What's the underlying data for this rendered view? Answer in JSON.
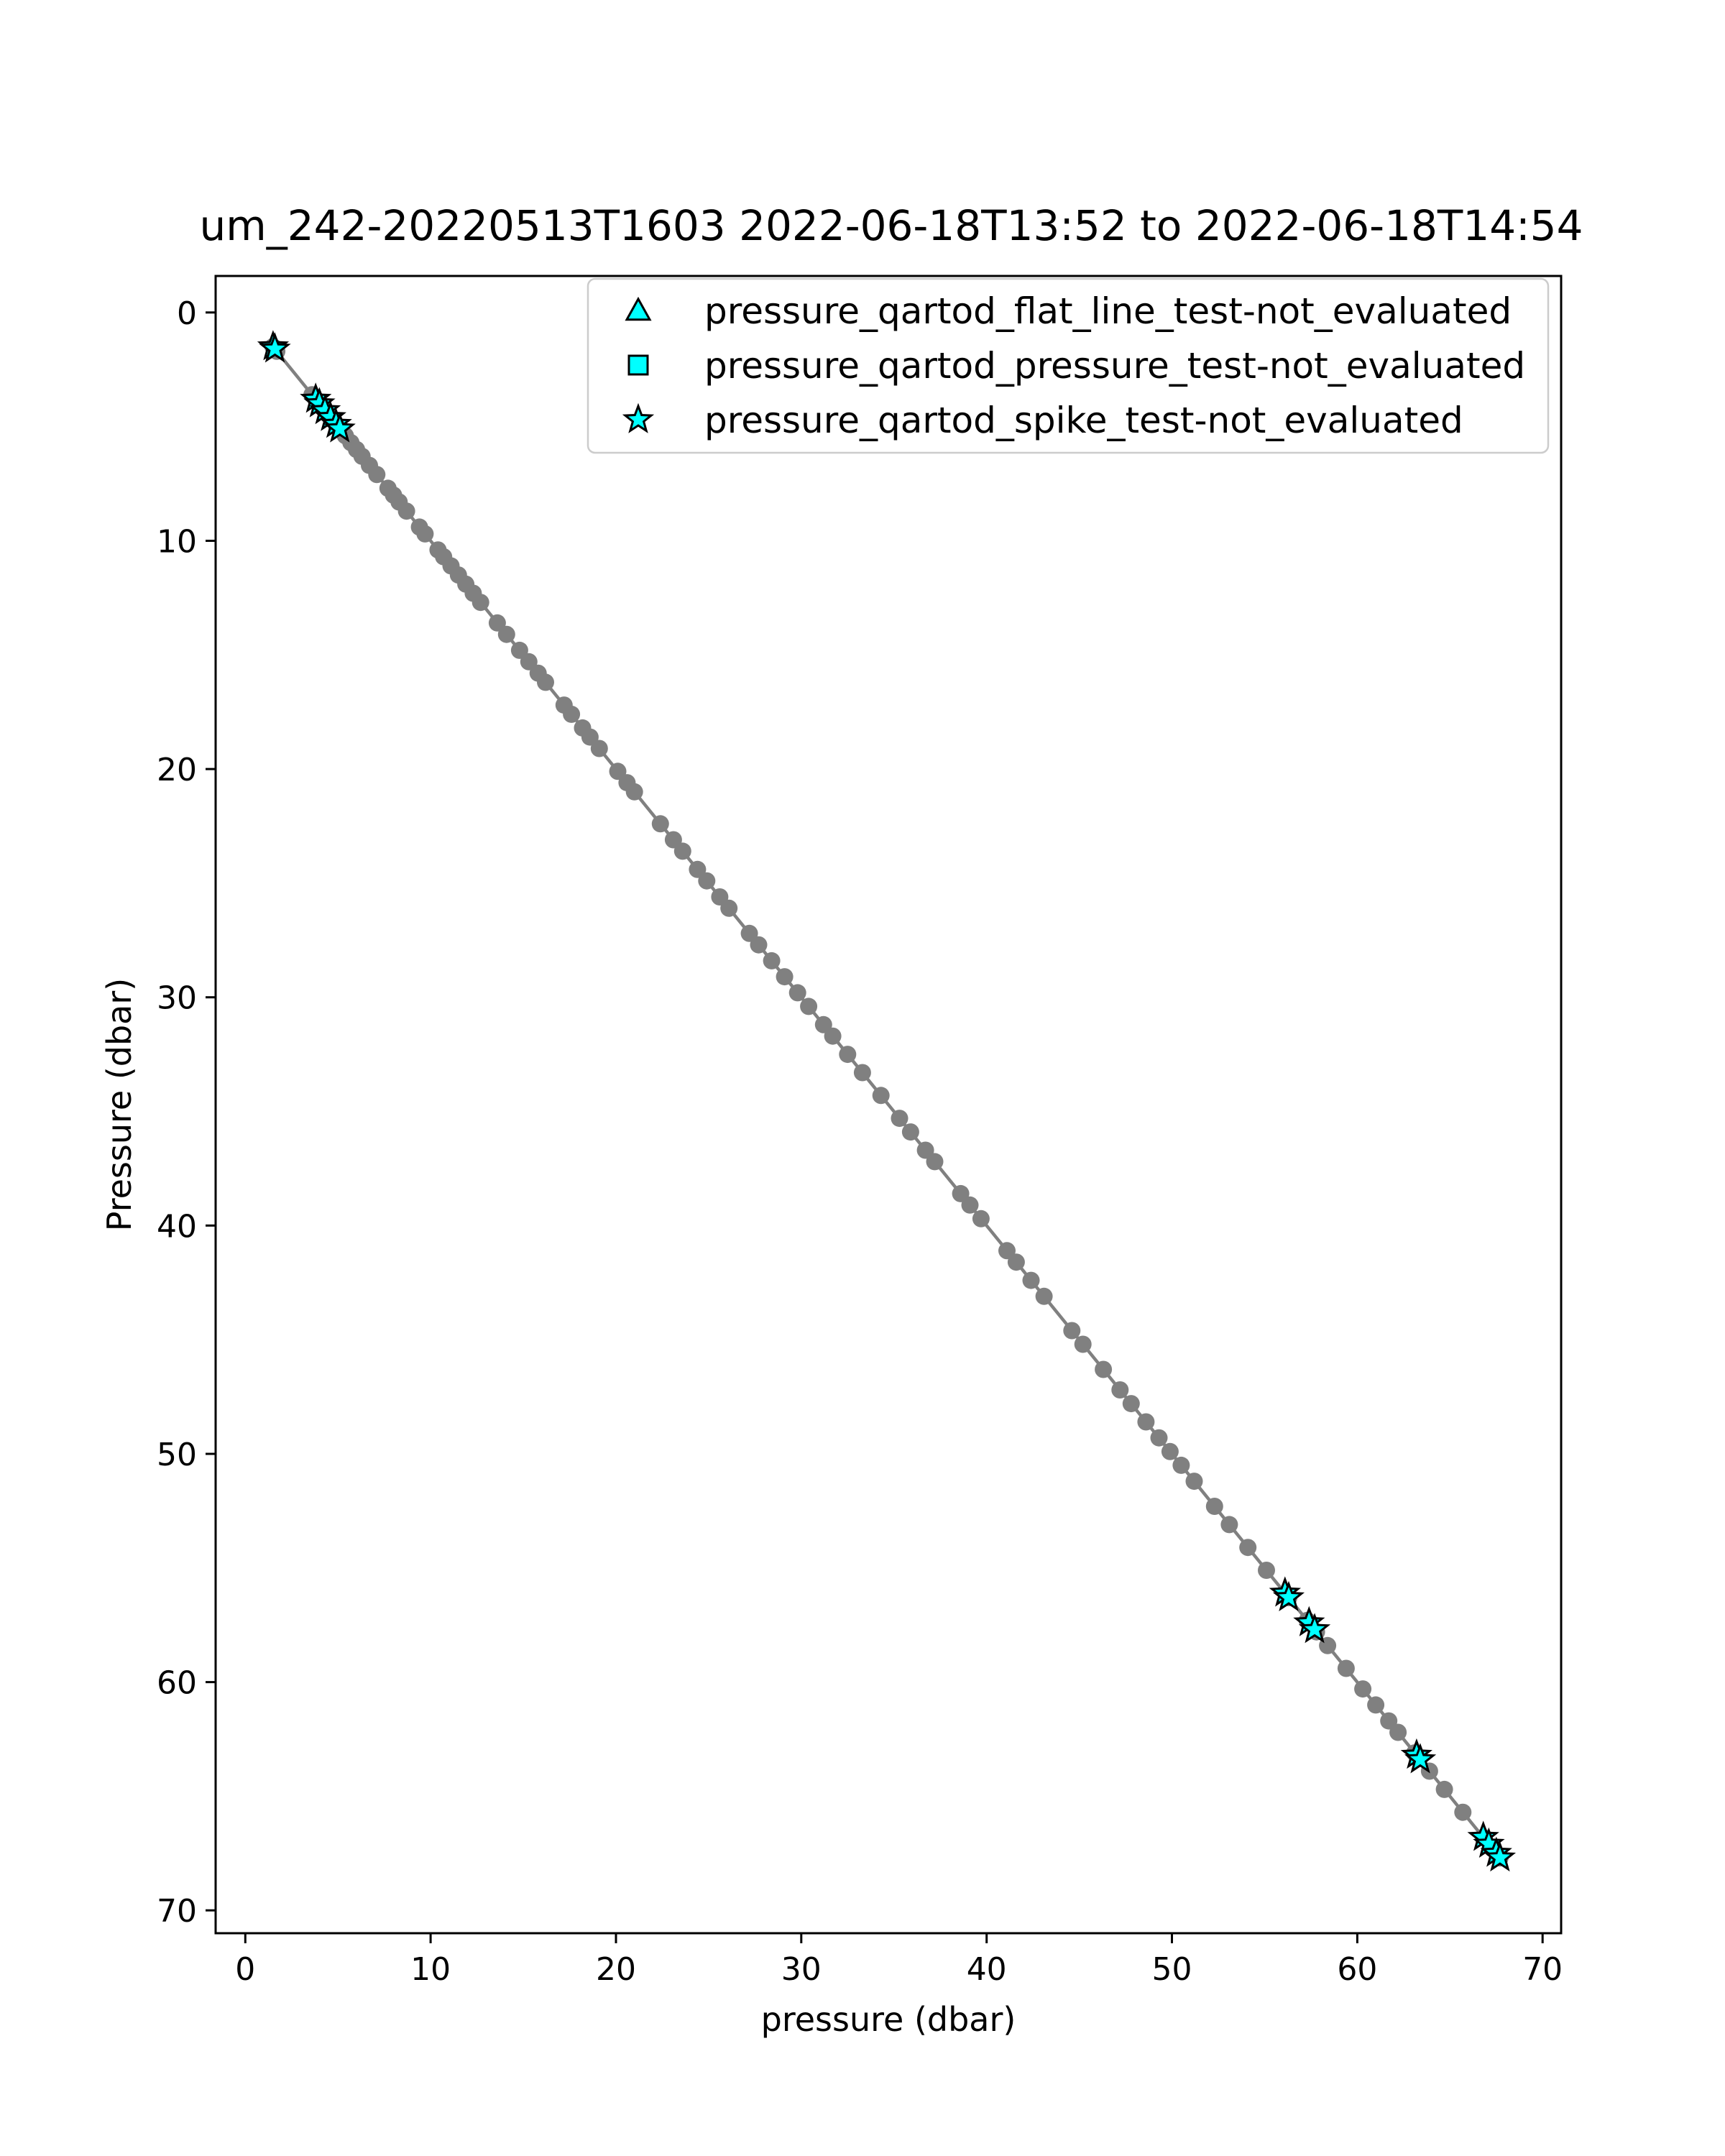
{
  "chart_data": {
    "type": "scatter",
    "title": "um_242-20220513T1603 2022-06-18T13:52 to 2022-06-18T14:54",
    "xlabel": "pressure (dbar)",
    "ylabel": "Pressure (dbar)",
    "xlim": [
      -1.6,
      71.0
    ],
    "ylim": [
      71.0,
      -1.6
    ],
    "y_inverted": true,
    "xticks": [
      0,
      10,
      20,
      30,
      40,
      50,
      60,
      70
    ],
    "yticks": [
      0,
      10,
      20,
      30,
      40,
      50,
      60,
      70
    ],
    "grid": false,
    "legend_position": "top-right",
    "profile": {
      "color": "#808080",
      "line_range": [
        1.5,
        67.7
      ],
      "points": [
        1.5,
        1.6,
        1.7,
        3.6,
        3.8,
        4.0,
        4.2,
        4.3,
        4.5,
        4.7,
        4.9,
        5.0,
        5.4,
        5.7,
        6.0,
        6.3,
        6.7,
        7.1,
        7.7,
        8.0,
        8.3,
        8.7,
        9.4,
        9.7,
        10.4,
        10.7,
        11.1,
        11.5,
        11.9,
        12.3,
        12.7,
        13.6,
        14.1,
        14.8,
        15.3,
        15.8,
        16.2,
        17.2,
        17.6,
        18.2,
        18.6,
        19.1,
        20.1,
        20.6,
        21.0,
        22.4,
        23.1,
        23.6,
        24.4,
        24.9,
        25.6,
        26.1,
        27.2,
        27.7,
        28.4,
        29.1,
        29.8,
        30.4,
        31.2,
        31.7,
        32.5,
        33.3,
        34.3,
        35.3,
        35.9,
        36.7,
        37.2,
        38.6,
        39.1,
        39.7,
        41.1,
        41.6,
        42.4,
        43.1,
        44.6,
        45.2,
        46.3,
        47.2,
        47.8,
        48.6,
        49.3,
        49.9,
        50.5,
        51.2,
        52.3,
        53.1,
        54.1,
        55.1,
        56.3,
        57.3,
        57.8,
        58.4,
        59.4,
        60.3,
        61.0,
        61.7,
        62.2,
        63.1,
        63.9,
        64.7,
        65.7,
        66.8,
        67.3,
        67.7
      ]
    },
    "series": [
      {
        "name": "pressure_qartod_flat_line_test-not_evaluated",
        "marker": "triangle",
        "color": "#00ffff",
        "points": []
      },
      {
        "name": "pressure_qartod_pressure_test-not_evaluated",
        "marker": "square",
        "color": "#00ffff",
        "points": []
      },
      {
        "name": "pressure_qartod_spike_test-not_evaluated",
        "marker": "star",
        "color": "#00ffff",
        "points": [
          1.5,
          1.6,
          3.8,
          4.0,
          4.3,
          4.6,
          4.9,
          5.1,
          56.1,
          56.3,
          57.4,
          57.7,
          63.2,
          63.4,
          66.8,
          67.1,
          67.5,
          67.7
        ]
      }
    ]
  }
}
